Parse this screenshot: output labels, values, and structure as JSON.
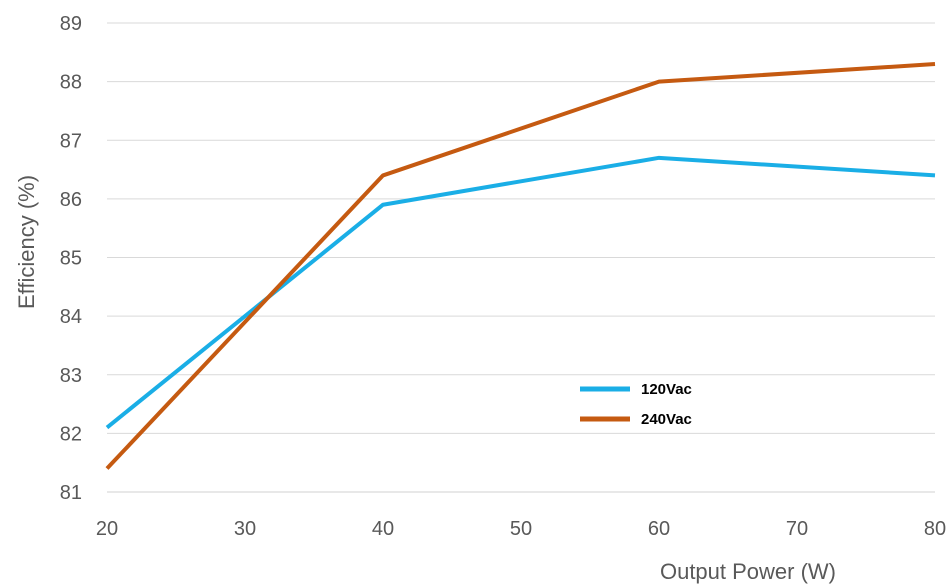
{
  "chart_data": {
    "type": "line",
    "title": "",
    "xlabel": "Output Power (W)",
    "ylabel": "Efficiency (%)",
    "x": [
      20,
      40,
      60,
      80
    ],
    "xlim": [
      20,
      80
    ],
    "ylim": [
      81,
      89
    ],
    "xticks": [
      "20",
      "30",
      "40",
      "50",
      "60",
      "70",
      "80"
    ],
    "yticks": [
      "81",
      "82",
      "83",
      "84",
      "85",
      "86",
      "87",
      "88",
      "89"
    ],
    "grid": "horizontal",
    "legend_position": "center-right",
    "series": [
      {
        "name": "120Vac",
        "color": "#1aaee6",
        "values": [
          82.1,
          85.9,
          86.7,
          86.4
        ]
      },
      {
        "name": "240Vac",
        "color": "#c55a11",
        "values": [
          81.4,
          86.4,
          88.0,
          88.3
        ]
      }
    ]
  }
}
